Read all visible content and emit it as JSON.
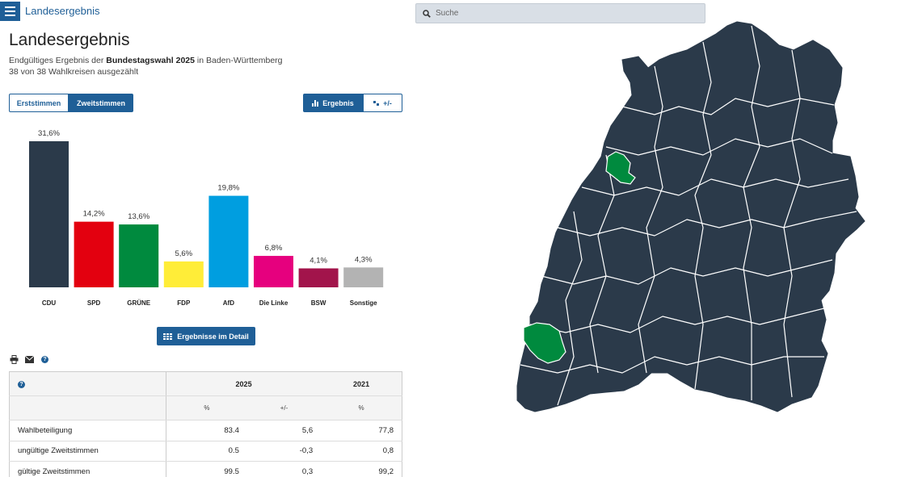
{
  "header": {
    "title": "Landesergebnis"
  },
  "page": {
    "title": "Landesergebnis",
    "subtitle_pre": "Endgültiges Ergebnis der ",
    "subtitle_bold": "Bundestagswahl 2025",
    "subtitle_post": " in Baden-Württemberg",
    "counted": "38 von 38 Wahlkreisen ausgezählt"
  },
  "vote_toggle": {
    "first": "Erststimmen",
    "second": "Zweitstimmen",
    "active": "second"
  },
  "view_toggle": {
    "result": "Ergebnis",
    "diff": "+/-",
    "active": "result"
  },
  "chart_data": {
    "type": "bar",
    "categories": [
      "CDU",
      "SPD",
      "GRÜNE",
      "FDP",
      "AfD",
      "Die Linke",
      "BSW",
      "Sonstige"
    ],
    "values": [
      31.6,
      14.2,
      13.6,
      5.6,
      19.8,
      6.8,
      4.1,
      4.3
    ],
    "labels": [
      "31,6%",
      "14,2%",
      "13,6%",
      "5,6%",
      "19,8%",
      "6,8%",
      "4,1%",
      "4,3%"
    ],
    "colors": [
      "#2b3a4a",
      "#e3000f",
      "#008a3e",
      "#ffed38",
      "#009ee0",
      "#e6007e",
      "#a2144b",
      "#b3b3b3"
    ],
    "ylim": [
      0,
      31.6
    ]
  },
  "detail_button": {
    "label": "Ergebnisse im Detail",
    "icon": "table-icon"
  },
  "tools": [
    "print-icon",
    "mail-icon",
    "help-icon"
  ],
  "table": {
    "help_symbol": "?",
    "year_2025": "2025",
    "year_2021": "2021",
    "col_pct": "%",
    "col_diff": "+/-",
    "col_pct_2021": "%",
    "rows": [
      {
        "label": "Wahlbeteiligung",
        "v2025": "83.4",
        "diff": "5,6",
        "v2021": "77,8"
      },
      {
        "label": "ungültige Zweitstimmen",
        "v2025": "0.5",
        "diff": "-0,3",
        "v2021": "0,8"
      },
      {
        "label": "gültige Zweitstimmen",
        "v2025": "99.5",
        "diff": "0,3",
        "v2021": "99,2"
      }
    ]
  },
  "search": {
    "placeholder": "Suche"
  },
  "map": {
    "base_color": "#2b3a4a",
    "border_color": "#ffffff",
    "highlight_color": "#008a3e"
  }
}
